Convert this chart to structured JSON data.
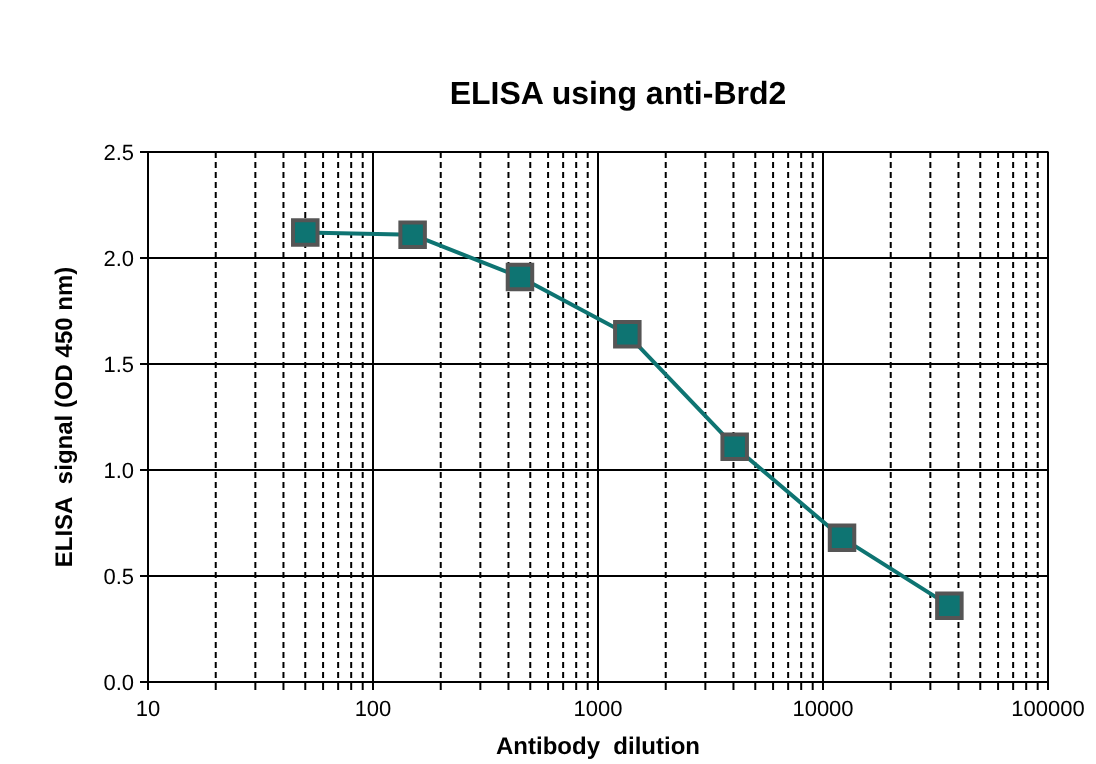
{
  "chart_data": {
    "type": "line",
    "title": "ELISA using anti-Brd2",
    "xlabel": "Antibody  dilution",
    "ylabel": "ELISA  signal (OD 450 nm)",
    "log": "x",
    "x": [
      50,
      150,
      450,
      1350,
      4050,
      12150,
      36450
    ],
    "series": [
      {
        "color": "#0e7472",
        "values": [
          2.12,
          2.11,
          1.91,
          1.64,
          1.11,
          0.68,
          0.36
        ]
      }
    ],
    "xlim": [
      10,
      100000
    ],
    "xticks": [
      10,
      {
        "value": 20,
        "label": null
      },
      {
        "value": 30,
        "label": null
      },
      {
        "value": 40,
        "label": null
      },
      {
        "value": 50,
        "label": null
      },
      {
        "value": 60,
        "label": null
      },
      {
        "value": 70,
        "label": null
      },
      {
        "value": 80,
        "label": null
      },
      {
        "value": 90,
        "label": null
      },
      100,
      {
        "value": 200,
        "label": null
      },
      {
        "value": 300,
        "label": null
      },
      {
        "value": 400,
        "label": null
      },
      {
        "value": 500,
        "label": null
      },
      {
        "value": 600,
        "label": null
      },
      {
        "value": 700,
        "label": null
      },
      {
        "value": 800,
        "label": null
      },
      {
        "value": 900,
        "label": null
      },
      1000,
      {
        "value": 2000,
        "label": null
      },
      {
        "value": 3000,
        "label": null
      },
      {
        "value": 4000,
        "label": null
      },
      {
        "value": 5000,
        "label": null
      },
      {
        "value": 6000,
        "label": null
      },
      {
        "value": 7000,
        "label": null
      },
      {
        "value": 8000,
        "label": null
      },
      {
        "value": 9000,
        "label": null
      },
      10000,
      {
        "value": 20000,
        "label": null
      },
      {
        "value": 30000,
        "label": null
      },
      {
        "value": 40000,
        "label": null
      },
      {
        "value": 50000,
        "label": null
      },
      {
        "value": 60000,
        "label": null
      },
      {
        "value": 70000,
        "label": null
      },
      {
        "value": 80000,
        "label": null
      },
      {
        "value": 90000,
        "label": null
      },
      100000
    ],
    "ylim": [
      0,
      2.5
    ],
    "yticks": [
      {
        "value": 0,
        "label": "0.0"
      },
      {
        "value": 0.5,
        "label": "0.5"
      },
      {
        "value": 1,
        "label": "1.0"
      },
      {
        "value": 1.5,
        "label": "1.5"
      },
      {
        "value": 2,
        "label": "2.0"
      },
      {
        "value": 2.5,
        "label": "2.5"
      }
    ],
    "grid": true,
    "marker": "square",
    "line_style": "solid"
  }
}
